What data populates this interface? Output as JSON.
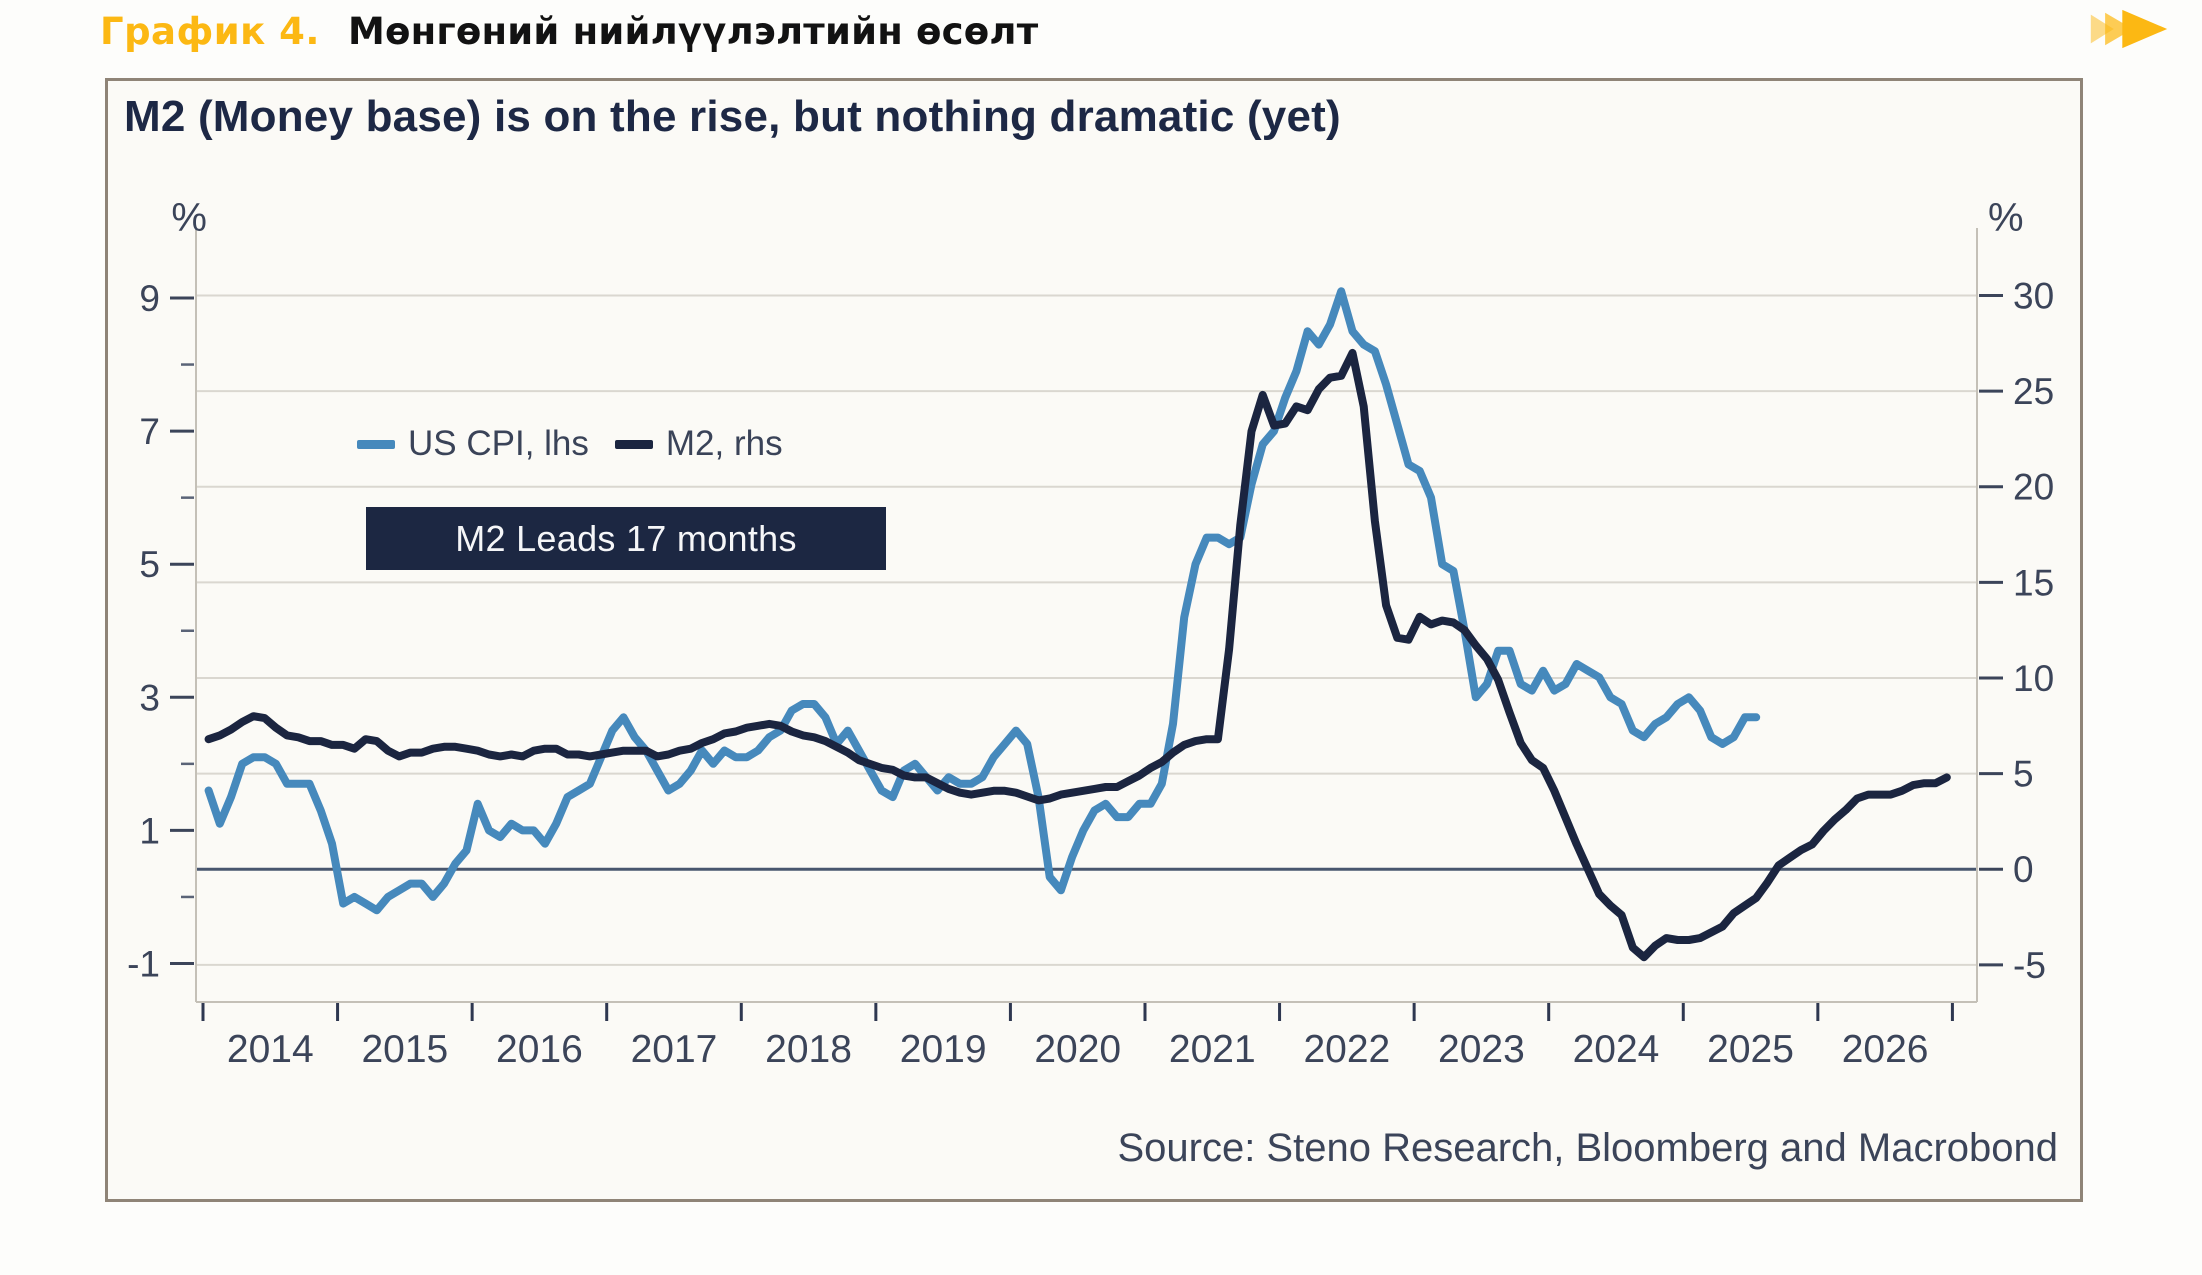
{
  "header": {
    "figure_label": "График 4.",
    "figure_title": "Мөнгөний нийлүүлэлтийн өсөлт"
  },
  "footer": {
    "source": "Source: Steno Research, Bloomberg and Macrobond"
  },
  "icons": {
    "fast_forward": "triple-right-arrow"
  },
  "colors": {
    "accent_gold": "#FCB813",
    "cpi_blue": "#4689BC",
    "m2_navy": "#1B2540",
    "gridline": "#DAD7D0",
    "zero_line": "#48566E",
    "axis_line": "#C4C0B7",
    "frame_border": "#8F8477",
    "annotation_bg": "#1C2742"
  },
  "chart_data": {
    "type": "line",
    "title": "M2 (Money base) is on the rise, but nothing dramatic (yet)",
    "annotation": "M2 Leads 17 months",
    "legend_position": "upper-left",
    "grid": "horizontal",
    "x_axis": {
      "years": [
        2014,
        2015,
        2016,
        2017,
        2018,
        2019,
        2020,
        2021,
        2022,
        2023,
        2024,
        2025,
        2026
      ]
    },
    "left_axis": {
      "unit": "%",
      "range": [
        -1.75,
        10.1
      ],
      "labeled_ticks": [
        9,
        7,
        5,
        3,
        1,
        -1
      ],
      "minor_ticks": [
        8,
        6,
        4,
        2,
        0
      ]
    },
    "right_axis": {
      "unit": "%",
      "range": [
        -6.9,
        31.9
      ],
      "labeled_ticks": [
        30,
        25,
        20,
        15,
        10,
        5,
        0,
        -5
      ]
    },
    "series": [
      {
        "name": "US CPI, lhs",
        "axis": "left",
        "color": "#4689BC",
        "frequency": "monthly",
        "start_displayed": "2014-01",
        "values": [
          1.6,
          1.1,
          1.5,
          2.0,
          2.1,
          2.1,
          2.0,
          1.7,
          1.7,
          1.7,
          1.3,
          0.8,
          -0.1,
          0.0,
          -0.1,
          -0.2,
          0.0,
          0.1,
          0.2,
          0.2,
          0.0,
          0.2,
          0.5,
          0.7,
          1.4,
          1.0,
          0.9,
          1.1,
          1.0,
          1.0,
          0.8,
          1.1,
          1.5,
          1.6,
          1.7,
          2.1,
          2.5,
          2.7,
          2.4,
          2.2,
          1.9,
          1.6,
          1.7,
          1.9,
          2.2,
          2.0,
          2.2,
          2.1,
          2.1,
          2.2,
          2.4,
          2.5,
          2.8,
          2.9,
          2.9,
          2.7,
          2.3,
          2.5,
          2.2,
          1.9,
          1.6,
          1.5,
          1.9,
          2.0,
          1.8,
          1.6,
          1.8,
          1.7,
          1.7,
          1.8,
          2.1,
          2.3,
          2.5,
          2.3,
          1.5,
          0.3,
          0.1,
          0.6,
          1.0,
          1.3,
          1.4,
          1.2,
          1.2,
          1.4,
          1.4,
          1.7,
          2.6,
          4.2,
          5.0,
          5.4,
          5.4,
          5.3,
          5.4,
          6.2,
          6.8,
          7.0,
          7.5,
          7.9,
          8.5,
          8.3,
          8.6,
          9.1,
          8.5,
          8.3,
          8.2,
          7.7,
          7.1,
          6.5,
          6.4,
          6.0,
          5.0,
          4.9,
          4.0,
          3.0,
          3.2,
          3.7,
          3.7,
          3.2,
          3.1,
          3.4,
          3.1,
          3.2,
          3.5,
          3.4,
          3.3,
          3.0,
          2.9,
          2.5,
          2.4,
          2.6,
          2.7,
          2.9,
          3.0,
          2.8,
          2.4,
          2.3,
          2.4,
          2.7,
          2.7
        ]
      },
      {
        "name": "M2, rhs",
        "axis": "right",
        "color": "#1B2540",
        "frequency": "monthly",
        "lead_months": 17,
        "start_displayed": "2014-01",
        "values": [
          6.8,
          7.0,
          7.3,
          7.7,
          8.0,
          7.9,
          7.4,
          7.0,
          6.9,
          6.7,
          6.7,
          6.5,
          6.5,
          6.3,
          6.8,
          6.7,
          6.2,
          5.9,
          6.1,
          6.1,
          6.3,
          6.4,
          6.4,
          6.3,
          6.2,
          6.0,
          5.9,
          6.0,
          5.9,
          6.2,
          6.3,
          6.3,
          6.0,
          6.0,
          5.9,
          6.0,
          6.1,
          6.2,
          6.2,
          6.2,
          5.9,
          6.0,
          6.2,
          6.3,
          6.6,
          6.8,
          7.1,
          7.2,
          7.4,
          7.5,
          7.6,
          7.5,
          7.2,
          7.0,
          6.9,
          6.7,
          6.4,
          6.1,
          5.7,
          5.5,
          5.3,
          5.2,
          4.9,
          4.8,
          4.8,
          4.5,
          4.2,
          4.0,
          3.9,
          4.0,
          4.1,
          4.1,
          4.0,
          3.8,
          3.6,
          3.7,
          3.9,
          4.0,
          4.1,
          4.2,
          4.3,
          4.3,
          4.6,
          4.9,
          5.3,
          5.6,
          6.1,
          6.5,
          6.7,
          6.8,
          6.8,
          11.5,
          18.0,
          22.9,
          24.8,
          23.2,
          23.3,
          24.2,
          24.0,
          25.1,
          25.7,
          25.8,
          27.0,
          24.2,
          18.2,
          13.8,
          12.1,
          12.0,
          13.2,
          12.8,
          13.0,
          12.9,
          12.5,
          11.7,
          11.0,
          9.9,
          8.2,
          6.6,
          5.7,
          5.3,
          4.1,
          2.7,
          1.3,
          0.0,
          -1.3,
          -1.9,
          -2.4,
          -4.1,
          -4.6,
          -4.0,
          -3.6,
          -3.7,
          -3.7,
          -3.6,
          -3.3,
          -3.0,
          -2.3,
          -1.9,
          -1.5,
          -0.7,
          0.2,
          0.6,
          1.0,
          1.3,
          2.0,
          2.6,
          3.1,
          3.7,
          3.9,
          3.9,
          3.9,
          4.1,
          4.4,
          4.5,
          4.5,
          4.8
        ]
      }
    ]
  }
}
